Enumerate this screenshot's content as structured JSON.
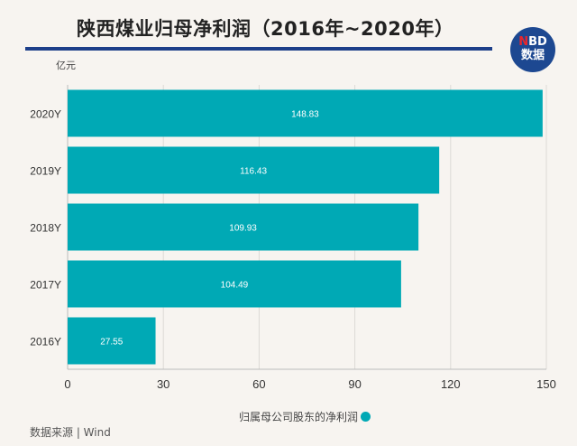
{
  "title": "陕西煤业归母净利润（2016年~2020年）",
  "logo": {
    "line1_n": "N",
    "line1_rest": "BD",
    "line2": "数据"
  },
  "source": "数据来源 | Wind",
  "colors": {
    "bar": "#00a9b5",
    "rule": "#1d3f8a",
    "background": "#f7f4f0"
  },
  "chart_data": {
    "type": "bar",
    "orientation": "horizontal",
    "ylabel": "亿元",
    "categories": [
      "2020Y",
      "2019Y",
      "2018Y",
      "2017Y",
      "2016Y"
    ],
    "series": [
      {
        "name": "归属母公司股东的净利润",
        "values": [
          148.83,
          116.43,
          109.93,
          104.49,
          27.55
        ]
      }
    ],
    "xlim": [
      0,
      150
    ],
    "xticks": [
      0,
      30,
      60,
      90,
      120,
      150
    ],
    "grid": true,
    "legend": "bottom"
  }
}
